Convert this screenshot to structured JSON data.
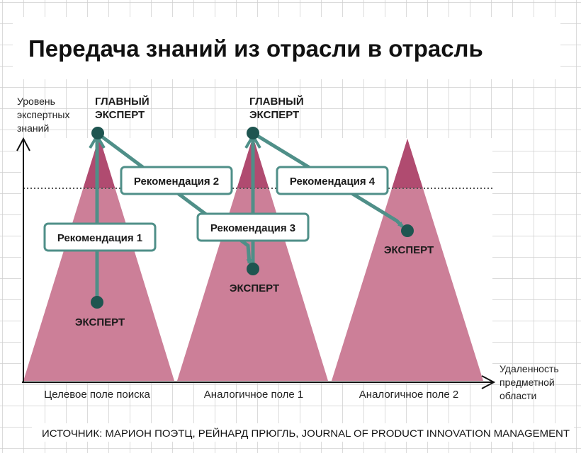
{
  "title": "Передача знаний из отрасли в отрасль",
  "axes": {
    "y_label": [
      "Уровень",
      "экспертных",
      "знаний"
    ],
    "x_label": [
      "Удаленность",
      "предметной",
      "области"
    ]
  },
  "regions": [
    {
      "label": "Целевое поле поиска"
    },
    {
      "label": "Аналогичное поле 1"
    },
    {
      "label": "Аналогичное поле 2"
    }
  ],
  "roles": {
    "chief_expert": [
      "ГЛАВНЫЙ",
      "ЭКСПЕРТ"
    ],
    "expert": "ЭКСПЕРТ"
  },
  "recommendations": [
    {
      "label": "Рекомендация 1"
    },
    {
      "label": "Рекомендация 2"
    },
    {
      "label": "Рекомендация 3"
    },
    {
      "label": "Рекомендация 4"
    }
  ],
  "source": "ИСТОЧНИК: МАРИОН ПОЭТЦ, РЕЙНАРД ПРЮГЛЬ, JOURNAL OF PRODUCT INNOVATION MANAGEMENT",
  "colors": {
    "triangle": "#cc7f98",
    "triangle_peak": "#b04b70",
    "connector": "#4f8f88",
    "node": "#1e5550",
    "grid": "#cfcfcf",
    "axis": "#111111"
  }
}
